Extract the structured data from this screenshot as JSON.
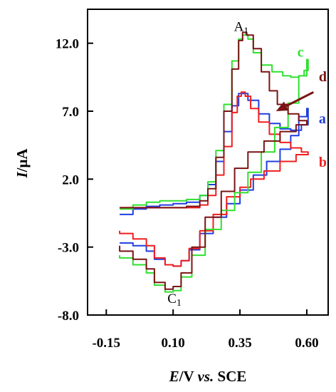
{
  "chart_data": {
    "type": "line",
    "title": "",
    "xlabel": {
      "E": "E",
      "unit": "/V",
      "vs": "vs.",
      "ref": "SCE"
    },
    "ylabel": {
      "I": "I",
      "unit": "/μA"
    },
    "xlim": [
      -0.22,
      0.68
    ],
    "ylim": [
      -8.0,
      14.5
    ],
    "x_ticks": [
      -0.15,
      0.1,
      0.35,
      0.6
    ],
    "x_tick_labels": [
      "-0.15",
      "0.10",
      "0.35",
      "0.60"
    ],
    "y_ticks": [
      -8.0,
      -3.0,
      2.0,
      7.0,
      12.0
    ],
    "y_tick_labels": [
      "-8.0",
      "-3.0",
      "2.0",
      "7.0",
      "12.0"
    ],
    "peak_labels": [
      {
        "main": "A",
        "sub": "1",
        "x": 0.355,
        "y": 12.9
      },
      {
        "main": "C",
        "sub": "1",
        "x": 0.105,
        "y": -7.1
      }
    ],
    "series": [
      {
        "name": "a",
        "color": "#1f3fe0",
        "points": [
          [
            -0.1,
            -0.6
          ],
          [
            -0.05,
            -0.2
          ],
          [
            0.0,
            0.0
          ],
          [
            0.05,
            0.1
          ],
          [
            0.1,
            0.2
          ],
          [
            0.15,
            0.3
          ],
          [
            0.2,
            0.8
          ],
          [
            0.23,
            1.6
          ],
          [
            0.26,
            3.3
          ],
          [
            0.29,
            5.5
          ],
          [
            0.32,
            7.4
          ],
          [
            0.345,
            8.3
          ],
          [
            0.36,
            8.3
          ],
          [
            0.38,
            7.8
          ],
          [
            0.42,
            6.8
          ],
          [
            0.46,
            6.1
          ],
          [
            0.5,
            5.7
          ],
          [
            0.54,
            5.6
          ],
          [
            0.58,
            6.0
          ],
          [
            0.605,
            6.8
          ],
          [
            0.605,
            7.2
          ],
          [
            0.6,
            6.6
          ],
          [
            0.57,
            5.2
          ],
          [
            0.54,
            4.2
          ],
          [
            0.5,
            3.3
          ],
          [
            0.45,
            2.3
          ],
          [
            0.4,
            1.2
          ],
          [
            0.35,
            0.2
          ],
          [
            0.3,
            -0.8
          ],
          [
            0.25,
            -2.0
          ],
          [
            0.2,
            -3.2
          ],
          [
            0.16,
            -4.0
          ],
          [
            0.13,
            -4.4
          ],
          [
            0.1,
            -4.3
          ],
          [
            0.07,
            -3.9
          ],
          [
            0.03,
            -3.3
          ],
          [
            0.0,
            -2.9
          ],
          [
            -0.05,
            -2.7
          ],
          [
            -0.1,
            -2.7
          ]
        ]
      },
      {
        "name": "b",
        "color": "#f01e1e",
        "points": [
          [
            -0.1,
            -0.1
          ],
          [
            -0.05,
            -0.1
          ],
          [
            0.0,
            -0.1
          ],
          [
            0.05,
            -0.1
          ],
          [
            0.1,
            -0.1
          ],
          [
            0.15,
            -0.1
          ],
          [
            0.2,
            0.1
          ],
          [
            0.23,
            0.8
          ],
          [
            0.26,
            2.3
          ],
          [
            0.29,
            4.4
          ],
          [
            0.32,
            6.9
          ],
          [
            0.34,
            8.1
          ],
          [
            0.355,
            8.4
          ],
          [
            0.37,
            8.1
          ],
          [
            0.39,
            7.2
          ],
          [
            0.42,
            6.2
          ],
          [
            0.46,
            5.3
          ],
          [
            0.5,
            4.7
          ],
          [
            0.54,
            4.3
          ],
          [
            0.58,
            4.0
          ],
          [
            0.605,
            3.8
          ],
          [
            0.6,
            3.8
          ],
          [
            0.56,
            3.3
          ],
          [
            0.5,
            2.6
          ],
          [
            0.44,
            2.0
          ],
          [
            0.39,
            1.4
          ],
          [
            0.35,
            0.7
          ],
          [
            0.3,
            -0.6
          ],
          [
            0.25,
            -1.8
          ],
          [
            0.2,
            -3.1
          ],
          [
            0.16,
            -4.0
          ],
          [
            0.13,
            -4.4
          ],
          [
            0.1,
            -4.3
          ],
          [
            0.07,
            -3.8
          ],
          [
            0.03,
            -2.9
          ],
          [
            0.0,
            -2.4
          ],
          [
            -0.05,
            -2.0
          ],
          [
            -0.1,
            -1.8
          ]
        ]
      },
      {
        "name": "c",
        "color": "#2fe02f",
        "points": [
          [
            -0.1,
            -0.2
          ],
          [
            -0.05,
            0.1
          ],
          [
            0.0,
            0.3
          ],
          [
            0.05,
            0.4
          ],
          [
            0.1,
            0.4
          ],
          [
            0.15,
            0.5
          ],
          [
            0.2,
            0.8
          ],
          [
            0.23,
            1.8
          ],
          [
            0.26,
            4.1
          ],
          [
            0.29,
            7.5
          ],
          [
            0.32,
            10.7
          ],
          [
            0.345,
            12.3
          ],
          [
            0.36,
            12.6
          ],
          [
            0.38,
            12.3
          ],
          [
            0.4,
            11.3
          ],
          [
            0.43,
            10.4
          ],
          [
            0.47,
            9.9
          ],
          [
            0.51,
            9.6
          ],
          [
            0.54,
            9.5
          ],
          [
            0.57,
            9.6
          ],
          [
            0.59,
            10.0
          ],
          [
            0.605,
            10.8
          ],
          [
            0.6,
            9.6
          ],
          [
            0.57,
            7.6
          ],
          [
            0.53,
            5.8
          ],
          [
            0.48,
            4.0
          ],
          [
            0.43,
            2.5
          ],
          [
            0.38,
            1.0
          ],
          [
            0.33,
            -0.3
          ],
          [
            0.28,
            -1.7
          ],
          [
            0.22,
            -3.6
          ],
          [
            0.17,
            -5.2
          ],
          [
            0.13,
            -6.2
          ],
          [
            0.1,
            -6.3
          ],
          [
            0.07,
            -5.8
          ],
          [
            0.03,
            -4.9
          ],
          [
            0.0,
            -4.3
          ],
          [
            -0.05,
            -3.8
          ],
          [
            -0.1,
            -3.6
          ]
        ]
      },
      {
        "name": "d",
        "color": "#7a1414",
        "points": [
          [
            -0.1,
            -0.1
          ],
          [
            -0.05,
            -0.1
          ],
          [
            0.0,
            -0.1
          ],
          [
            0.05,
            -0.1
          ],
          [
            0.1,
            -0.1
          ],
          [
            0.15,
            0.0
          ],
          [
            0.2,
            0.4
          ],
          [
            0.23,
            1.3
          ],
          [
            0.26,
            3.6
          ],
          [
            0.29,
            7.0
          ],
          [
            0.32,
            10.1
          ],
          [
            0.345,
            12.2
          ],
          [
            0.36,
            12.8
          ],
          [
            0.375,
            12.6
          ],
          [
            0.4,
            11.6
          ],
          [
            0.43,
            9.9
          ],
          [
            0.46,
            8.5
          ],
          [
            0.49,
            7.5
          ],
          [
            0.53,
            6.8
          ],
          [
            0.57,
            6.3
          ],
          [
            0.6,
            6.0
          ],
          [
            0.6,
            6.0
          ],
          [
            0.56,
            5.5
          ],
          [
            0.5,
            4.8
          ],
          [
            0.44,
            4.0
          ],
          [
            0.38,
            2.8
          ],
          [
            0.33,
            1.1
          ],
          [
            0.28,
            -0.8
          ],
          [
            0.22,
            -3.0
          ],
          [
            0.17,
            -4.9
          ],
          [
            0.13,
            -5.9
          ],
          [
            0.1,
            -6.1
          ],
          [
            0.07,
            -5.6
          ],
          [
            0.03,
            -4.6
          ],
          [
            0.0,
            -3.9
          ],
          [
            -0.05,
            -3.3
          ],
          [
            -0.1,
            -2.9
          ]
        ]
      }
    ],
    "series_labels": [
      {
        "name": "c",
        "color": "#2fe02f",
        "x": 0.565,
        "y": 11.0
      },
      {
        "name": "d",
        "color": "#7a1414",
        "x": 0.645,
        "y": 9.2
      },
      {
        "name": "a",
        "color": "#1f3fe0",
        "x": 0.645,
        "y": 6.1
      },
      {
        "name": "b",
        "color": "#f01e1e",
        "x": 0.645,
        "y": 2.9
      }
    ],
    "arrow": {
      "color": "#7a1414",
      "from": [
        0.625,
        8.4
      ],
      "to": [
        0.485,
        7.0
      ]
    }
  }
}
